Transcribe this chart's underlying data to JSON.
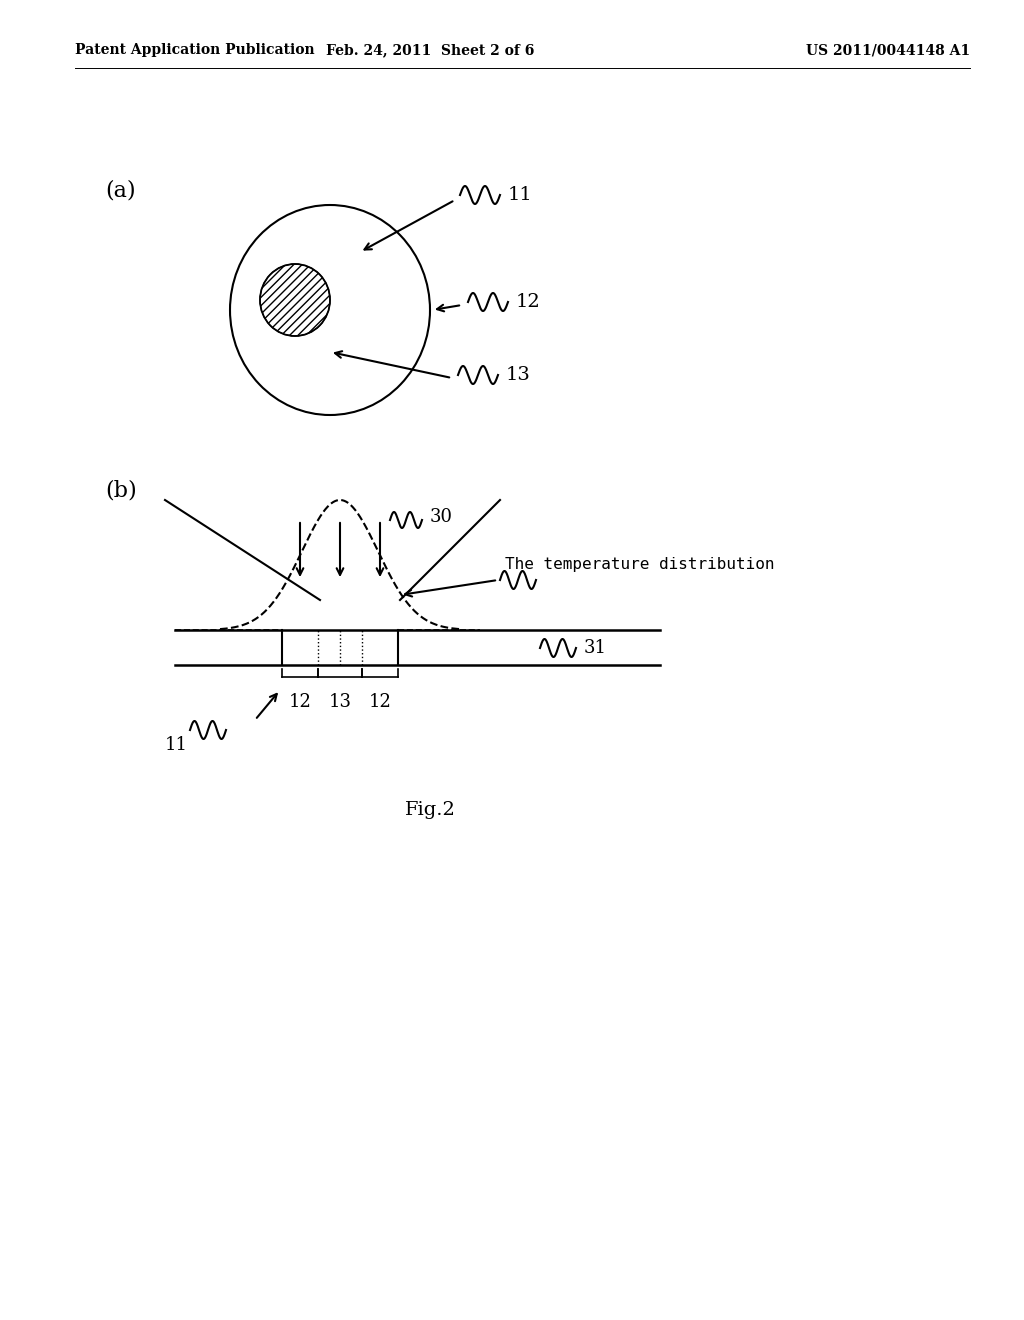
{
  "bg_color": "#ffffff",
  "header_left": "Patent Application Publication",
  "header_mid": "Feb. 24, 2011  Sheet 2 of 6",
  "header_right": "US 2011/0044148 A1",
  "fig_label": "Fig.2",
  "label_a": "(a)",
  "label_b": "(b)",
  "label_11": "11",
  "label_12": "12",
  "label_13": "13",
  "label_30": "30",
  "label_31": "31",
  "temp_dist_label": "The temperature distribution"
}
